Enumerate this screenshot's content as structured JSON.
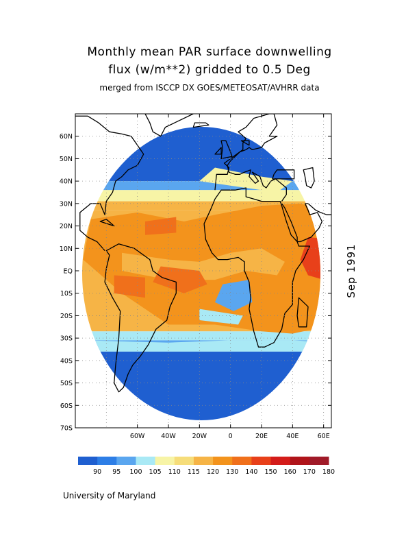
{
  "title": {
    "line1": "Monthly mean PAR surface downwelling",
    "line2": "flux (w/m**2) gridded to 0.5 Deg",
    "subtitle": "merged from ISCCP DX GOES/METEOSAT/AVHRR data"
  },
  "side_label": "Sep 1991",
  "credit": "University of Maryland",
  "map": {
    "lon_range": [
      -100,
      65
    ],
    "lat_range": [
      -70,
      70
    ],
    "lat_ticks": [
      "60N",
      "50N",
      "40N",
      "30N",
      "20N",
      "10N",
      "EQ",
      "10S",
      "20S",
      "30S",
      "40S",
      "50S",
      "60S",
      "70S"
    ],
    "lon_ticks": [
      "60W",
      "40W",
      "20W",
      "0",
      "20E",
      "40E",
      "60E"
    ],
    "grid": "dotted"
  },
  "legend": {
    "colors": [
      "#1f5fd0",
      "#2d7ee6",
      "#5aa6ef",
      "#a9e9f5",
      "#f7f4a6",
      "#f6dd7a",
      "#f6b446",
      "#f3931c",
      "#f0701b",
      "#e8401a",
      "#d41c1a",
      "#b0141a",
      "#a01a28"
    ],
    "labels": [
      "90",
      "95",
      "100",
      "105",
      "110",
      "115",
      "120",
      "130",
      "140",
      "150",
      "160",
      "170",
      "180"
    ]
  },
  "chart_data": {
    "type": "heatmap",
    "title": "Monthly mean PAR surface downwelling flux (w/m**2) gridded to 0.5 Deg",
    "subtitle": "merged from ISCCP DX GOES/METEOSAT/AVHRR data",
    "units": "w/m**2",
    "period": "Sep 1991",
    "xlabel": "",
    "ylabel": "",
    "lon_range": [
      -100,
      65
    ],
    "lat_range": [
      -70,
      70
    ],
    "color_levels": [
      90,
      95,
      100,
      105,
      110,
      115,
      120,
      130,
      140,
      150,
      160,
      170,
      180
    ],
    "zonal_profile": [
      {
        "lat": 60,
        "value": 90
      },
      {
        "lat": 50,
        "value": 90
      },
      {
        "lat": 40,
        "value": 100
      },
      {
        "lat": 30,
        "value": 120
      },
      {
        "lat": 20,
        "value": 130
      },
      {
        "lat": 10,
        "value": 130
      },
      {
        "lat": 0,
        "value": 130
      },
      {
        "lat": -10,
        "value": 130
      },
      {
        "lat": -20,
        "value": 130
      },
      {
        "lat": -30,
        "value": 105
      },
      {
        "lat": -40,
        "value": 90
      },
      {
        "lat": -50,
        "value": 90
      },
      {
        "lat": -60,
        "value": 90
      }
    ]
  }
}
